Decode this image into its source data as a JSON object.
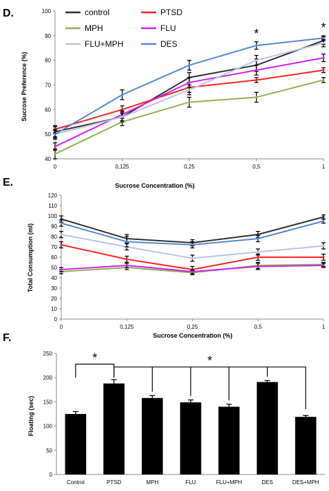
{
  "panels": [
    {
      "letter": "D."
    },
    {
      "letter": "E."
    },
    {
      "letter": "F."
    }
  ],
  "chart_data": [
    {
      "type": "line",
      "panel": "D.",
      "xlabel": "Sucrose Concentration (%)",
      "ylabel": "Sucrose Preference (%)",
      "ylim": [
        40,
        100
      ],
      "yticks": [
        "40",
        "50",
        "60",
        "70",
        "80",
        "90",
        "100"
      ],
      "categories": [
        "0",
        "0,125",
        "0,25",
        "0,5",
        "1"
      ],
      "legend_position": "top-left, two columns",
      "series": [
        {
          "name": "control",
          "color": "#303030",
          "values": [
            51,
            57,
            73,
            78,
            88
          ],
          "errors": [
            2,
            1.5,
            2,
            2.5,
            1.5
          ]
        },
        {
          "name": "PTSD",
          "color": "#ff2020",
          "values": [
            52,
            60,
            69,
            72,
            76
          ],
          "errors": [
            1.5,
            1.5,
            2,
            1,
            1
          ]
        },
        {
          "name": "MPH",
          "color": "#90b050",
          "values": [
            42,
            55,
            63,
            65,
            72
          ],
          "errors": [
            2,
            1.5,
            2,
            2,
            1
          ]
        },
        {
          "name": "FLU",
          "color": "#cc22ee",
          "values": [
            45,
            58,
            71,
            76,
            81
          ],
          "errors": [
            1.5,
            1.5,
            2,
            2,
            1.5
          ]
        },
        {
          "name": "FLU+MPH",
          "color": "#b8c4e4",
          "values": [
            50,
            57,
            68,
            80,
            87
          ],
          "errors": [
            1.5,
            2,
            2,
            2,
            1.5
          ]
        },
        {
          "name": "DES",
          "color": "#4f8ad0",
          "values": [
            50,
            66,
            78,
            86,
            89
          ],
          "errors": [
            2,
            2,
            2,
            1.5,
            1
          ]
        }
      ],
      "annotations": [
        {
          "text": "*",
          "category": "0,5"
        },
        {
          "text": "*",
          "category": "1"
        }
      ]
    },
    {
      "type": "line",
      "panel": "E.",
      "xlabel": "Sucrose Concentration (%)",
      "ylabel": "Total Consumption (ml)",
      "ylim": [
        0,
        120
      ],
      "yticks": [
        "0",
        "10",
        "20",
        "30",
        "40",
        "50",
        "60",
        "70",
        "80",
        "90",
        "100",
        "110",
        "120"
      ],
      "categories": [
        "0",
        "0,125",
        "0,25",
        "0,5",
        "1"
      ],
      "series": [
        {
          "color": "#303030",
          "values": [
            97,
            78,
            74,
            82,
            99
          ],
          "errors": [
            3,
            4,
            3,
            3,
            2
          ]
        },
        {
          "color": "#ff2020",
          "values": [
            72,
            58,
            48,
            60,
            60
          ],
          "errors": [
            3,
            3,
            3,
            3,
            3
          ]
        },
        {
          "color": "#90b050",
          "values": [
            46,
            50,
            45,
            52,
            53
          ],
          "errors": [
            2,
            2,
            2,
            3,
            2
          ]
        },
        {
          "color": "#cc22ee",
          "values": [
            48,
            52,
            46,
            51,
            52
          ],
          "errors": [
            2,
            2,
            2,
            3,
            2
          ]
        },
        {
          "color": "#b8c4e4",
          "values": [
            82,
            70,
            59,
            65,
            71
          ],
          "errors": [
            3,
            3,
            3,
            3,
            3
          ]
        },
        {
          "color": "#4f8ad0",
          "values": [
            93,
            75,
            72,
            78,
            95
          ],
          "errors": [
            3,
            5,
            3,
            3,
            2
          ]
        }
      ]
    },
    {
      "type": "bar",
      "panel": "F.",
      "xlabel": "",
      "ylabel": "Floating (sec)",
      "ylim": [
        0,
        250
      ],
      "yticks": [
        "0",
        "50",
        "100",
        "150",
        "200",
        "250"
      ],
      "categories": [
        "Control",
        "PTSD",
        "MPH",
        "FLU",
        "FLU+MPH",
        "DES",
        "DES+MPH"
      ],
      "values": [
        125,
        188,
        158,
        149,
        140,
        191,
        119
      ],
      "errors": [
        5,
        8,
        5,
        5,
        5,
        3,
        3
      ],
      "bar_color": "#000000",
      "annotations": [
        {
          "text": "*",
          "bracket": [
            "Control",
            "PTSD"
          ]
        },
        {
          "text": "*",
          "bracket": [
            "PTSD",
            "DES+MPH"
          ]
        }
      ]
    }
  ]
}
